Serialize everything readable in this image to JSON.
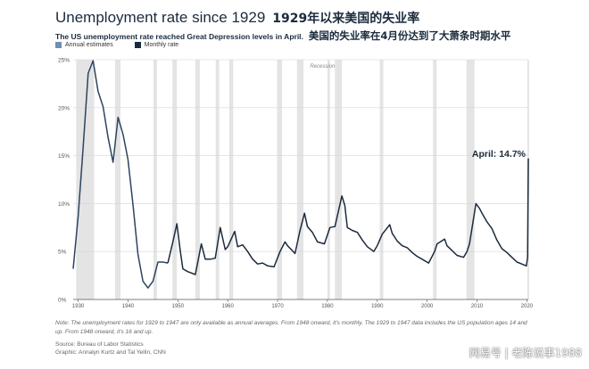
{
  "header": {
    "title": "Unemployment rate since 1929",
    "title_cn": "1929年以来美国的失业率",
    "subtitle": "The US unemployment rate reached Great Depression levels in April.",
    "subtitle_cn": "美国的失业率在4月份达到了大萧条时期水平"
  },
  "legend": [
    {
      "label": "Annual estimates",
      "color": "#6d8fb3"
    },
    {
      "label": "Monthly rate",
      "color": "#1b2b3d"
    }
  ],
  "footer": {
    "note_line1": "Note: The unemployment rates for 1929 to 1947 are only available as annual averages. From 1948 onward, it's monthly. The 1929 to 1947 data includes the US population ages 14 and",
    "note_line2": "up. From 1948 onward, it's 16 and up.",
    "source": "Source: Bureau of Labor Statistics",
    "graphic": "Graphic: Annalyn Kurtz and Tal Yellin, CNN"
  },
  "watermark": "网易号 | 老陈说事1988",
  "chart_data": {
    "type": "line",
    "title": "Unemployment rate since 1929",
    "ylim": [
      0,
      25
    ],
    "xlim": [
      1929,
      2020.3
    ],
    "y_ticks": [
      "0%",
      "5%",
      "10%",
      "15%",
      "20%",
      "25%"
    ],
    "x_ticks": [
      "1930",
      "1940",
      "1950",
      "1960",
      "1970",
      "1980",
      "1990",
      "2000",
      "2010",
      "2020"
    ],
    "recession_label": "Recession",
    "recessions": [
      [
        1929.6,
        1933.2
      ],
      [
        1937.4,
        1938.5
      ],
      [
        1945.1,
        1945.8
      ],
      [
        1948.9,
        1949.8
      ],
      [
        1953.5,
        1954.4
      ],
      [
        1957.6,
        1958.3
      ],
      [
        1960.3,
        1961.1
      ],
      [
        1969.9,
        1970.9
      ],
      [
        1973.9,
        1975.2
      ],
      [
        1980.0,
        1980.5
      ],
      [
        1981.5,
        1982.9
      ],
      [
        1990.5,
        1991.2
      ],
      [
        2001.2,
        2001.9
      ],
      [
        2007.9,
        2009.5
      ],
      [
        2020.1,
        2020.3
      ]
    ],
    "annotation": {
      "label": "April: 14.7%",
      "x": 2020.3,
      "y": 14.7
    },
    "series": [
      {
        "name": "Annual estimates",
        "x": [
          1929,
          1930,
          1931,
          1932,
          1933,
          1934,
          1935,
          1936,
          1937,
          1938,
          1939,
          1940,
          1941,
          1942,
          1943,
          1944,
          1945,
          1946,
          1947,
          1948
        ],
        "values": [
          3.2,
          8.7,
          15.9,
          23.6,
          24.9,
          21.7,
          20.1,
          16.9,
          14.3,
          19.0,
          17.2,
          14.6,
          9.9,
          4.7,
          1.9,
          1.2,
          1.9,
          3.9,
          3.9,
          3.8
        ]
      },
      {
        "name": "Monthly rate",
        "x": [
          1948,
          1949,
          1949.8,
          1950.5,
          1951,
          1952,
          1953.5,
          1954.7,
          1955.5,
          1956.5,
          1957.5,
          1958.5,
          1959.5,
          1960,
          1961.4,
          1962,
          1963,
          1964,
          1965,
          1966,
          1967,
          1968,
          1969.3,
          1970.5,
          1971.5,
          1972,
          1973.5,
          1974.5,
          1975.4,
          1976,
          1977,
          1978,
          1979.4,
          1980.5,
          1981.5,
          1982.9,
          1983.5,
          1984,
          1985,
          1986,
          1987,
          1988,
          1989.3,
          1990,
          1991,
          1992.5,
          1993,
          1994,
          1995,
          1996,
          1997,
          1998,
          1999,
          2000.3,
          2001.5,
          2002,
          2003.5,
          2004,
          2005,
          2006,
          2007.3,
          2008,
          2008.5,
          2009.8,
          2010.5,
          2011,
          2012,
          2013,
          2014,
          2015,
          2016,
          2017,
          2018,
          2019,
          2019.9,
          2020.15,
          2020.3
        ],
        "values": [
          3.8,
          6.0,
          7.9,
          5.0,
          3.2,
          2.9,
          2.6,
          5.8,
          4.2,
          4.2,
          4.3,
          7.5,
          5.2,
          5.5,
          7.1,
          5.5,
          5.7,
          5.0,
          4.2,
          3.7,
          3.8,
          3.5,
          3.4,
          5.0,
          6.0,
          5.6,
          4.8,
          7.2,
          9.0,
          7.6,
          7.0,
          6.0,
          5.8,
          7.5,
          7.6,
          10.8,
          9.8,
          7.5,
          7.2,
          7.0,
          6.2,
          5.5,
          5.0,
          5.6,
          6.8,
          7.8,
          6.9,
          6.1,
          5.6,
          5.4,
          4.9,
          4.5,
          4.2,
          3.8,
          5.0,
          5.8,
          6.3,
          5.6,
          5.1,
          4.6,
          4.4,
          5.0,
          5.8,
          10.0,
          9.5,
          9.0,
          8.1,
          7.4,
          6.2,
          5.3,
          4.9,
          4.4,
          3.9,
          3.7,
          3.5,
          4.4,
          14.7
        ]
      }
    ]
  }
}
